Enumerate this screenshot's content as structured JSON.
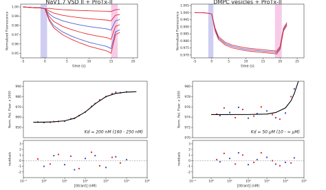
{
  "chart_data": [
    {
      "type": "line",
      "title": "NaV1.7 VSD II + ProTx-II",
      "x_label": "time (s)",
      "y_label": "Normalized Fluorescence",
      "xlim": [
        -5.5,
        21
      ],
      "ylim": [
        0.945,
        1.003
      ],
      "xticks": [
        -5,
        0,
        5,
        10,
        15,
        20
      ],
      "yticks": [
        0.95,
        0.96,
        0.97,
        0.98,
        0.99,
        {
          "value": 1.0,
          "label": "1.00"
        }
      ],
      "spans": [
        {
          "x": [
            -1,
            0.5
          ],
          "color": "#cfcdf2"
        },
        {
          "x": [
            15,
            16.5
          ],
          "color": "#f6cbe8"
        }
      ],
      "x": [
        -5,
        -2,
        -1,
        0,
        1,
        2,
        4,
        6,
        8,
        10,
        12,
        14,
        15,
        16,
        17
      ],
      "series": [
        {
          "color": "#e8262a",
          "values": [
            1.0,
            0.999,
            0.999,
            0.998,
            0.9985,
            0.9978,
            0.997,
            0.9965,
            0.9961,
            0.9958,
            0.9955,
            0.9953,
            0.995,
            0.997,
            0.9973
          ]
        },
        {
          "color": "#e8262a",
          "values": [
            1.0,
            0.999,
            0.999,
            0.998,
            0.9955,
            0.9933,
            0.991,
            0.9895,
            0.9883,
            0.9873,
            0.9865,
            0.9858,
            0.985,
            0.991,
            0.9918
          ]
        },
        {
          "color": "#4a5fd0",
          "values": [
            1.0,
            0.999,
            0.999,
            0.998,
            0.9925,
            0.9888,
            0.985,
            0.9825,
            0.9805,
            0.9788,
            0.9775,
            0.9763,
            0.975,
            0.985,
            0.9863
          ]
        },
        {
          "color": "#e8262a",
          "values": [
            1.0,
            0.999,
            0.999,
            0.998,
            0.9895,
            0.9843,
            0.979,
            0.9755,
            0.9727,
            0.9703,
            0.9685,
            0.9668,
            0.965,
            0.979,
            0.9808
          ]
        },
        {
          "color": "#4a5fd0",
          "values": [
            1.0,
            0.999,
            0.999,
            0.998,
            0.9865,
            0.9798,
            0.973,
            0.9685,
            0.9649,
            0.9618,
            0.9595,
            0.9573,
            0.955,
            0.973,
            0.9753
          ]
        },
        {
          "color": "#e8262a",
          "values": [
            1.0,
            0.999,
            0.999,
            0.998,
            0.985,
            0.9775,
            0.97,
            0.965,
            0.961,
            0.9575,
            0.955,
            0.9525,
            0.95,
            0.97,
            0.9725
          ]
        }
      ]
    },
    {
      "type": "line",
      "title": "DMPC vesicles + ProTx-II",
      "x_label": "time (s)",
      "y_label": "Normalized Fluorescence",
      "xlim": [
        -6,
        27
      ],
      "ylim": [
        0.968,
        1.006
      ],
      "xticks": [
        -5,
        0,
        5,
        10,
        15,
        20,
        25
      ],
      "yticks": [
        {
          "value": 0.97,
          "label": "0.970"
        },
        0.975,
        {
          "value": 0.98,
          "label": "0.980"
        },
        0.985,
        {
          "value": 0.99,
          "label": "0.990"
        },
        0.995,
        {
          "value": 1.0,
          "label": "1.000"
        },
        1.005
      ],
      "spans": [
        {
          "x": [
            -1,
            0.5
          ],
          "color": "#cfcdf2"
        },
        {
          "x": [
            18.5,
            20.5
          ],
          "color": "#f6cbe8"
        }
      ],
      "x": [
        -5,
        -2,
        -1,
        0,
        1,
        2,
        4,
        6,
        8,
        10,
        12,
        14,
        16,
        18,
        19,
        20,
        21,
        22
      ],
      "series": [
        {
          "color": "#e8262a",
          "values": [
            1.0,
            0.9998,
            0.9995,
            0.999,
            0.989,
            0.983,
            0.979,
            0.977,
            0.976,
            0.975,
            0.9745,
            0.974,
            0.9735,
            0.973,
            0.9728,
            0.976,
            0.989,
            0.993
          ]
        },
        {
          "color": "#4a5fd0",
          "values": [
            1.0,
            0.9998,
            0.9995,
            0.999,
            0.988,
            0.982,
            0.978,
            0.976,
            0.975,
            0.974,
            0.9735,
            0.973,
            0.9725,
            0.972,
            0.9718,
            0.975,
            0.988,
            0.992
          ]
        },
        {
          "color": "#e8262a",
          "values": [
            1.0,
            0.9998,
            0.9995,
            0.999,
            0.987,
            0.981,
            0.977,
            0.975,
            0.974,
            0.973,
            0.9725,
            0.972,
            0.9715,
            0.971,
            0.9708,
            0.974,
            0.987,
            0.991
          ]
        }
      ]
    },
    {
      "type": "scatter",
      "y_label": "Norm. Rel. Fluor. x 1000",
      "annotation": "Kd = 200 nM (160 - 250 nM)",
      "xscale": "log",
      "xlim": [
        0.1,
        100000
      ],
      "ylim": [
        940,
        995
      ],
      "yticks": [
        950,
        960,
        970,
        980,
        990
      ],
      "series": [
        {
          "style": "points",
          "color": "#e8262a",
          "x": [
            0.5,
            2,
            5,
            20,
            50,
            200,
            500,
            2000,
            5000
          ],
          "values": [
            955.2,
            955.0,
            955.8,
            958.4,
            961.5,
            970.5,
            976.8,
            983.0,
            983.8
          ]
        },
        {
          "style": "points",
          "color": "#3d4fb8",
          "x": [
            1,
            3,
            10,
            30,
            100,
            300,
            1000,
            3000,
            10000
          ],
          "values": [
            954.8,
            955.7,
            956.0,
            958.9,
            965.0,
            973.2,
            980.0,
            984.3,
            984.6
          ]
        },
        {
          "style": "line",
          "color": "#000000",
          "x": [
            0.3,
            1,
            3,
            10,
            30,
            100,
            200,
            300,
            1000,
            3000,
            10000,
            30000
          ],
          "values": [
            955.04,
            955.15,
            955.44,
            956.43,
            958.91,
            965.0,
            970.0,
            973.0,
            980.0,
            983.13,
            984.41,
            984.8
          ]
        }
      ]
    },
    {
      "type": "scatter",
      "y_label": "residuals",
      "x_label": "[titrant] (nM)",
      "xscale": "log",
      "xlim": [
        0.1,
        100000
      ],
      "ylim": [
        -3,
        3.6
      ],
      "yticks": [
        -2,
        -1,
        0,
        1,
        2,
        3
      ],
      "xticks": [
        {
          "value": 0.1,
          "label": "10⁻¹"
        },
        {
          "value": 1,
          "label": "10⁰"
        },
        {
          "value": 10,
          "label": "10¹"
        },
        {
          "value": 100,
          "label": "10²"
        },
        {
          "value": 1000,
          "label": "10³"
        },
        {
          "value": 10000,
          "label": "10⁴"
        },
        {
          "value": 100000,
          "label": "10⁵"
        }
      ],
      "zero_line": true,
      "series": [
        {
          "style": "points",
          "color": "#e8262a",
          "x": [
            0.5,
            2,
            5,
            20,
            50,
            200,
            500,
            2000,
            5000
          ],
          "values": [
            0.3,
            -0.6,
            1.1,
            0.8,
            -1.4,
            1.5,
            -0.9,
            0.6,
            -0.4
          ]
        },
        {
          "style": "points",
          "color": "#3d4fb8",
          "x": [
            1,
            3,
            10,
            30,
            100,
            300,
            1000,
            3000,
            10000
          ],
          "values": [
            -1.0,
            0.9,
            -0.7,
            -1.6,
            0.4,
            0.9,
            -1.2,
            0.7,
            0.2
          ]
        }
      ]
    },
    {
      "type": "scatter",
      "y_label": "Norm. Rel. Fluor. x 1000",
      "annotation": "Kd = 50 µM (10 - ∞ µM)",
      "xscale": "log",
      "xlim": [
        0.1,
        100000
      ],
      "ylim": [
        970,
        981
      ],
      "yticks": [
        970,
        972,
        974,
        976,
        978,
        980
      ],
      "series": [
        {
          "style": "points",
          "color": "#e8262a",
          "x": [
            2,
            5,
            20,
            50,
            200,
            500,
            2000,
            5000,
            20000
          ],
          "values": [
            974.6,
            975.8,
            973.9,
            975.5,
            974.2,
            976.0,
            974.5,
            973.6,
            978.0
          ]
        },
        {
          "style": "points",
          "color": "#3d4fb8",
          "x": [
            3,
            10,
            30,
            100,
            300,
            1000,
            3000,
            10000,
            30000
          ],
          "values": [
            974.3,
            974.9,
            975.9,
            973.8,
            974.7,
            975.2,
            973.9,
            974.8,
            979.5
          ]
        },
        {
          "style": "line",
          "color": "#000000",
          "x": [
            1,
            10,
            100,
            1000,
            3000,
            10000,
            20000,
            30000,
            50000
          ],
          "values": [
            974.5,
            974.5,
            974.51,
            974.6,
            974.9,
            975.8,
            977.2,
            978.6,
            981.0
          ]
        }
      ]
    },
    {
      "type": "scatter",
      "y_label": "residuals",
      "x_label": "[titrant] (nM)",
      "xscale": "log",
      "xlim": [
        0.1,
        100000
      ],
      "ylim": [
        -3,
        3.6
      ],
      "yticks": [
        -2,
        -1,
        0,
        1,
        2,
        3
      ],
      "xticks": [
        {
          "value": 0.1,
          "label": "10⁻¹"
        },
        {
          "value": 1,
          "label": "10⁰"
        },
        {
          "value": 10,
          "label": "10¹"
        },
        {
          "value": 100,
          "label": "10²"
        },
        {
          "value": 1000,
          "label": "10³"
        },
        {
          "value": 10000,
          "label": "10⁴"
        },
        {
          "value": 100000,
          "label": "10⁵"
        }
      ],
      "zero_line": true,
      "series": [
        {
          "style": "points",
          "color": "#e8262a",
          "x": [
            2,
            5,
            20,
            50,
            200,
            500,
            2000,
            5000,
            20000
          ],
          "values": [
            0.2,
            1.3,
            -0.6,
            1.0,
            -0.3,
            1.4,
            0.0,
            -0.9,
            -0.4
          ]
        },
        {
          "style": "points",
          "color": "#3d4fb8",
          "x": [
            3,
            10,
            30,
            100,
            300,
            1000,
            3000,
            10000,
            30000
          ],
          "values": [
            -0.2,
            0.4,
            1.4,
            -0.7,
            0.2,
            0.6,
            -0.6,
            -0.3,
            0.5
          ]
        }
      ]
    }
  ]
}
